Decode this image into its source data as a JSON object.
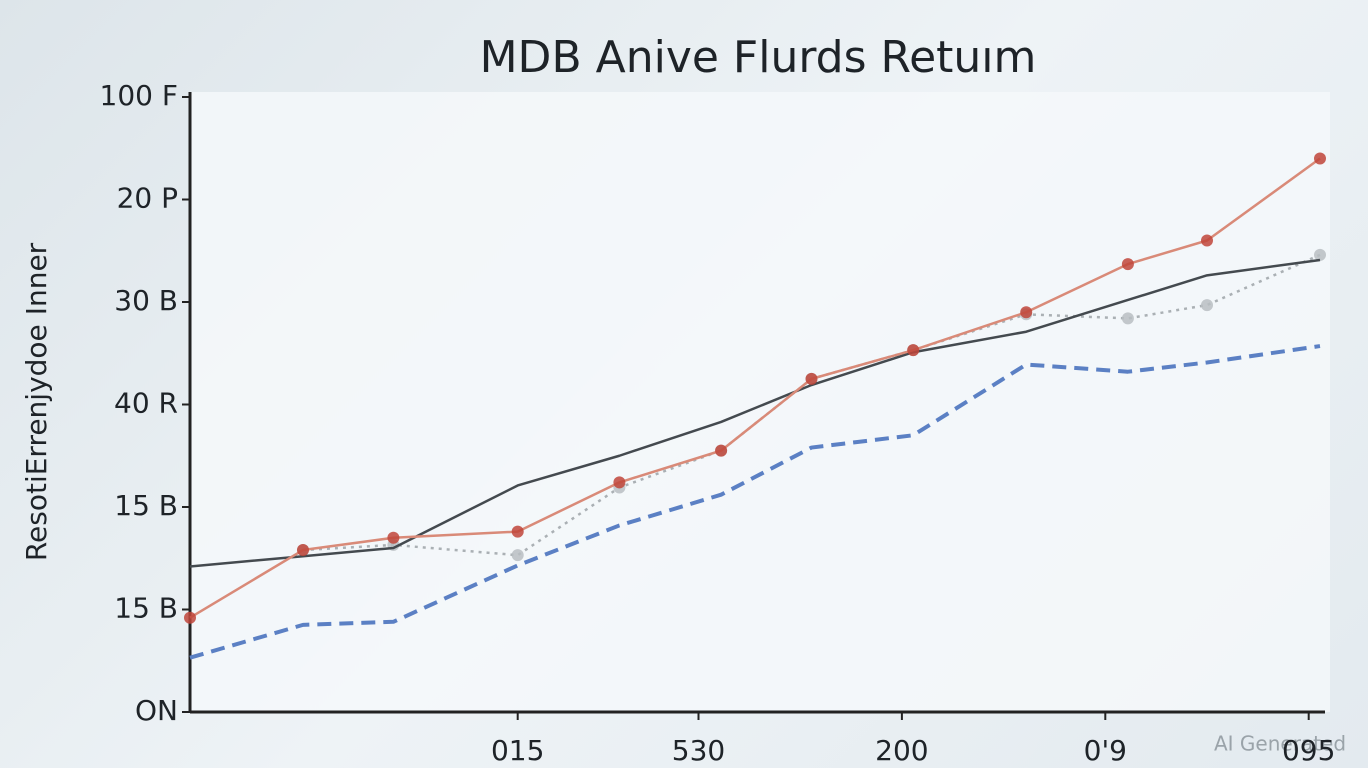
{
  "chart_data": {
    "type": "line",
    "title": "MDB Anive Flurds Retuım",
    "y_label": "ResotiErrenjydoe Inner",
    "watermark": "AI Generated",
    "x": [
      0,
      10,
      18,
      29,
      38,
      47,
      55,
      64,
      74,
      83,
      90,
      100
    ],
    "xlim": [
      0,
      100
    ],
    "xticks": [
      {
        "value": 29,
        "label": "015"
      },
      {
        "value": 45,
        "label": "530"
      },
      {
        "value": 63,
        "label": "200"
      },
      {
        "value": 81,
        "label": "0'9"
      },
      {
        "value": 99,
        "label": "095"
      }
    ],
    "ylim": [
      0,
      6
    ],
    "yticks": [
      {
        "value": 0,
        "label": "ON"
      },
      {
        "value": 1,
        "label": "15 B"
      },
      {
        "value": 2,
        "label": "15 B"
      },
      {
        "value": 3,
        "label": "40 R"
      },
      {
        "value": 4,
        "label": "30 B"
      },
      {
        "value": 5,
        "label": "20 P"
      },
      {
        "value": 6,
        "label": "100 F"
      }
    ],
    "grid": false,
    "series": [
      {
        "color": "#5b80c4",
        "dash": "dashed",
        "marker": false,
        "values": [
          0.53,
          0.85,
          0.88,
          1.43,
          1.82,
          2.12,
          2.58,
          2.7,
          3.39,
          3.32,
          3.41,
          3.57
        ]
      },
      {
        "color": "#aab0b4",
        "dash": "dotted",
        "marker": true,
        "values": [
          null,
          1.58,
          1.63,
          1.53,
          2.19,
          2.55,
          3.25,
          3.53,
          3.88,
          3.84,
          3.97,
          4.46
        ]
      },
      {
        "color": "#444a4f",
        "dash": "solid",
        "marker": false,
        "values": [
          1.42,
          1.52,
          1.6,
          2.21,
          2.5,
          2.83,
          3.19,
          3.51,
          3.71,
          4.02,
          4.26,
          4.41
        ]
      },
      {
        "color": "#d98a78",
        "dash": "solid",
        "marker": true,
        "values": [
          0.92,
          1.58,
          1.7,
          1.76,
          2.24,
          2.55,
          3.25,
          3.53,
          3.9,
          4.37,
          4.6,
          5.4
        ]
      }
    ]
  }
}
